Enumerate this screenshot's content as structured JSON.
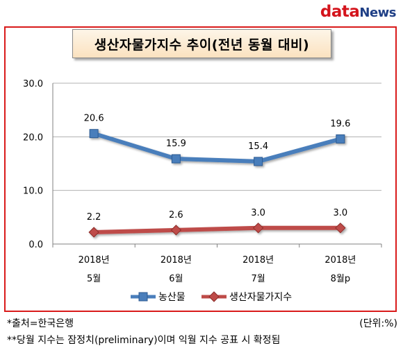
{
  "logo": {
    "main": "data",
    "accent": "News"
  },
  "chart_data": {
    "type": "line",
    "title": "생산자물가지수 추이(전년 동월 대비)",
    "categories": [
      [
        "2018년",
        "5월"
      ],
      [
        "2018년",
        "6월"
      ],
      [
        "2018년",
        "7월"
      ],
      [
        "2018년",
        "8월p"
      ]
    ],
    "ylim": [
      0,
      30
    ],
    "yticks": [
      "0.0",
      "10.0",
      "20.0",
      "30.0"
    ],
    "grid": true,
    "legend_position": "bottom",
    "series": [
      {
        "name": "농산물",
        "values": [
          20.6,
          15.9,
          15.4,
          19.6
        ],
        "labels": [
          "20.6",
          "15.9",
          "15.4",
          "19.6"
        ],
        "color": "#4a7ebb",
        "marker": "square"
      },
      {
        "name": "생산자물가지수",
        "values": [
          2.2,
          2.6,
          3.0,
          3.0
        ],
        "labels": [
          "2.2",
          "2.6",
          "3.0",
          "3.0"
        ],
        "color": "#be4b48",
        "marker": "diamond"
      }
    ]
  },
  "footer": {
    "source": "*출처=한국은행",
    "unit": "(단위:%)",
    "note": "**당월 지수는 잠정치(preliminary)이며 익월 지수 공표 시 확정됨"
  }
}
